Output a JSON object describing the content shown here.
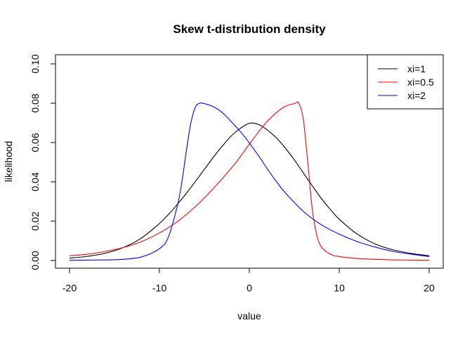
{
  "chart_data": {
    "type": "line",
    "title": "Skew t-distribution density",
    "xlabel": "value",
    "ylabel": "likelihood",
    "xlim": [
      -20,
      20
    ],
    "ylim": [
      0,
      0.1
    ],
    "x_ticks": [
      "-20",
      "-10",
      "0",
      "10",
      "20"
    ],
    "y_ticks": [
      "0.00",
      "0.02",
      "0.04",
      "0.06",
      "0.08",
      "0.10"
    ],
    "grid": false,
    "legend_position": "top-right",
    "series": [
      {
        "name": "xi=1",
        "color": "#000000",
        "x": [
          -20,
          -18,
          -16,
          -14,
          -12,
          -10,
          -9,
          -8,
          -7,
          -6,
          -5,
          -4,
          -3,
          -2,
          -1,
          0,
          1,
          2,
          3,
          4,
          5,
          6,
          7,
          8,
          9,
          10,
          12,
          14,
          16,
          18,
          20
        ],
        "values": [
          0.0012,
          0.0021,
          0.0037,
          0.0066,
          0.0114,
          0.0188,
          0.0234,
          0.0286,
          0.0342,
          0.0402,
          0.0464,
          0.0525,
          0.0582,
          0.0634,
          0.0672,
          0.0698,
          0.0692,
          0.0664,
          0.0624,
          0.0572,
          0.0512,
          0.0446,
          0.038,
          0.0316,
          0.026,
          0.021,
          0.0134,
          0.0084,
          0.0054,
          0.0036,
          0.0024
        ]
      },
      {
        "name": "xi=0.5",
        "color": "#ff0000",
        "x": [
          -20,
          -18,
          -16,
          -14,
          -12,
          -10,
          -8,
          -6,
          -4,
          -2,
          -1,
          0,
          1,
          2,
          3,
          4,
          5,
          5.5,
          6,
          6.5,
          7,
          7.5,
          8,
          9,
          10,
          12,
          14,
          16,
          18,
          20
        ],
        "values": [
          0.0024,
          0.0032,
          0.0046,
          0.0066,
          0.0096,
          0.014,
          0.0198,
          0.0274,
          0.0366,
          0.047,
          0.0528,
          0.0592,
          0.0652,
          0.0708,
          0.0752,
          0.0784,
          0.0798,
          0.08,
          0.072,
          0.05,
          0.026,
          0.013,
          0.007,
          0.0032,
          0.002,
          0.001,
          0.0006,
          0.0003,
          0.0002,
          0.0001
        ]
      },
      {
        "name": "xi=2",
        "color": "#0000ff",
        "x": [
          -20,
          -18,
          -16,
          -14,
          -12,
          -10,
          -9,
          -8,
          -7.5,
          -7,
          -6.5,
          -6,
          -5.5,
          -5,
          -4,
          -3,
          -2,
          -1,
          0,
          1,
          2,
          3,
          4,
          6,
          8,
          10,
          12,
          14,
          16,
          18,
          20
        ],
        "values": [
          0.0001,
          0.0002,
          0.0003,
          0.0006,
          0.0018,
          0.006,
          0.012,
          0.028,
          0.04,
          0.056,
          0.07,
          0.078,
          0.08,
          0.0798,
          0.0782,
          0.0752,
          0.0706,
          0.0656,
          0.0598,
          0.0534,
          0.0466,
          0.0402,
          0.0344,
          0.025,
          0.0182,
          0.0134,
          0.0096,
          0.0068,
          0.0046,
          0.0032,
          0.002
        ]
      }
    ]
  }
}
